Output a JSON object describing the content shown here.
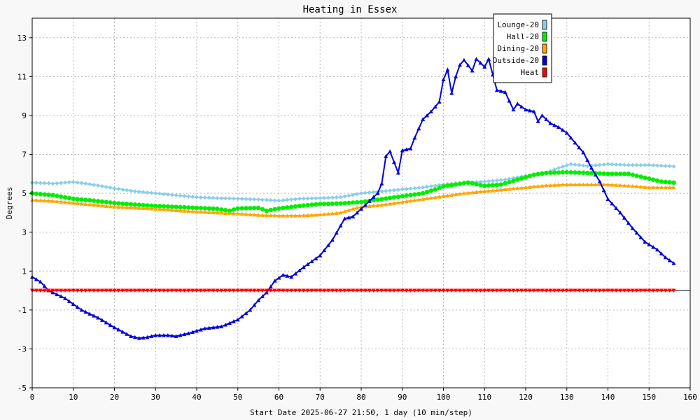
{
  "chart_data": {
    "type": "line",
    "title": "Heating in Essex",
    "xlabel": "Start Date 2025-06-27 21:50, 1 day (10 min/step)",
    "ylabel": "Degrees",
    "xlim": [
      0,
      160
    ],
    "ylim": [
      -5,
      14
    ],
    "x_ticks": [
      0,
      10,
      20,
      30,
      40,
      50,
      60,
      70,
      80,
      90,
      100,
      110,
      120,
      130,
      140,
      150,
      160
    ],
    "y_ticks": [
      -5,
      -3,
      -1,
      1,
      3,
      5,
      7,
      9,
      11,
      13
    ],
    "grid": true,
    "legend_position": "top-right",
    "series": [
      {
        "name": "Lounge-20",
        "color": "#87ceeb",
        "marker": "diamond",
        "points": [
          [
            0,
            5.55
          ],
          [
            5,
            5.5
          ],
          [
            10,
            5.58
          ],
          [
            13,
            5.5
          ],
          [
            16,
            5.4
          ],
          [
            20,
            5.25
          ],
          [
            25,
            5.1
          ],
          [
            30,
            5.0
          ],
          [
            35,
            4.9
          ],
          [
            40,
            4.8
          ],
          [
            45,
            4.75
          ],
          [
            50,
            4.72
          ],
          [
            55,
            4.68
          ],
          [
            60,
            4.62
          ],
          [
            65,
            4.72
          ],
          [
            70,
            4.75
          ],
          [
            75,
            4.8
          ],
          [
            80,
            5.0
          ],
          [
            85,
            5.1
          ],
          [
            90,
            5.2
          ],
          [
            95,
            5.3
          ],
          [
            100,
            5.45
          ],
          [
            105,
            5.55
          ],
          [
            110,
            5.6
          ],
          [
            115,
            5.7
          ],
          [
            120,
            5.9
          ],
          [
            125,
            6.05
          ],
          [
            128,
            6.3
          ],
          [
            131,
            6.5
          ],
          [
            135,
            6.4
          ],
          [
            140,
            6.5
          ],
          [
            145,
            6.45
          ],
          [
            150,
            6.45
          ],
          [
            156,
            6.38
          ]
        ]
      },
      {
        "name": "Hall-20",
        "color": "#00ee00",
        "marker": "circle",
        "points": [
          [
            0,
            5.0
          ],
          [
            5,
            4.9
          ],
          [
            10,
            4.72
          ],
          [
            15,
            4.62
          ],
          [
            20,
            4.5
          ],
          [
            25,
            4.42
          ],
          [
            30,
            4.35
          ],
          [
            35,
            4.3
          ],
          [
            40,
            4.25
          ],
          [
            45,
            4.2
          ],
          [
            48,
            4.1
          ],
          [
            50,
            4.22
          ],
          [
            55,
            4.25
          ],
          [
            57,
            4.1
          ],
          [
            60,
            4.22
          ],
          [
            65,
            4.35
          ],
          [
            70,
            4.45
          ],
          [
            75,
            4.48
          ],
          [
            80,
            4.55
          ],
          [
            85,
            4.7
          ],
          [
            90,
            4.85
          ],
          [
            95,
            5.0
          ],
          [
            98,
            5.2
          ],
          [
            100,
            5.35
          ],
          [
            103,
            5.45
          ],
          [
            106,
            5.55
          ],
          [
            110,
            5.38
          ],
          [
            114,
            5.45
          ],
          [
            118,
            5.7
          ],
          [
            122,
            5.95
          ],
          [
            125,
            6.05
          ],
          [
            130,
            6.08
          ],
          [
            135,
            6.05
          ],
          [
            140,
            6.0
          ],
          [
            145,
            6.0
          ],
          [
            150,
            5.75
          ],
          [
            153,
            5.6
          ],
          [
            156,
            5.55
          ]
        ]
      },
      {
        "name": "Dining-20",
        "color": "#ffa500",
        "marker": "triangle",
        "points": [
          [
            0,
            4.65
          ],
          [
            5,
            4.6
          ],
          [
            10,
            4.5
          ],
          [
            15,
            4.4
          ],
          [
            20,
            4.3
          ],
          [
            25,
            4.25
          ],
          [
            30,
            4.2
          ],
          [
            35,
            4.12
          ],
          [
            40,
            4.05
          ],
          [
            45,
            4.0
          ],
          [
            50,
            3.95
          ],
          [
            55,
            3.88
          ],
          [
            60,
            3.85
          ],
          [
            65,
            3.85
          ],
          [
            70,
            3.9
          ],
          [
            75,
            4.0
          ],
          [
            78,
            4.2
          ],
          [
            80,
            4.3
          ],
          [
            85,
            4.4
          ],
          [
            90,
            4.55
          ],
          [
            95,
            4.7
          ],
          [
            100,
            4.85
          ],
          [
            105,
            5.0
          ],
          [
            110,
            5.1
          ],
          [
            115,
            5.2
          ],
          [
            120,
            5.3
          ],
          [
            125,
            5.4
          ],
          [
            130,
            5.45
          ],
          [
            135,
            5.45
          ],
          [
            140,
            5.45
          ],
          [
            145,
            5.38
          ],
          [
            150,
            5.3
          ],
          [
            156,
            5.3
          ]
        ]
      },
      {
        "name": "Outside-20",
        "color": "#0000dd",
        "marker": "triangle",
        "points": [
          [
            0,
            0.7
          ],
          [
            2,
            0.45
          ],
          [
            4,
            0.0
          ],
          [
            8,
            -0.4
          ],
          [
            12,
            -1.0
          ],
          [
            16,
            -1.4
          ],
          [
            20,
            -1.9
          ],
          [
            24,
            -2.35
          ],
          [
            26,
            -2.45
          ],
          [
            28,
            -2.4
          ],
          [
            30,
            -2.3
          ],
          [
            33,
            -2.3
          ],
          [
            35,
            -2.35
          ],
          [
            38,
            -2.2
          ],
          [
            42,
            -1.95
          ],
          [
            46,
            -1.85
          ],
          [
            50,
            -1.5
          ],
          [
            53,
            -1.0
          ],
          [
            55,
            -0.5
          ],
          [
            57,
            -0.1
          ],
          [
            59,
            0.5
          ],
          [
            61,
            0.8
          ],
          [
            63,
            0.7
          ],
          [
            66,
            1.2
          ],
          [
            70,
            1.8
          ],
          [
            73,
            2.6
          ],
          [
            76,
            3.7
          ],
          [
            78,
            3.8
          ],
          [
            80,
            4.2
          ],
          [
            82,
            4.6
          ],
          [
            84,
            5.0
          ],
          [
            85,
            5.5
          ],
          [
            86,
            6.9
          ],
          [
            87,
            7.15
          ],
          [
            88,
            6.6
          ],
          [
            89,
            6.05
          ],
          [
            90,
            7.2
          ],
          [
            92,
            7.3
          ],
          [
            93,
            7.85
          ],
          [
            95,
            8.8
          ],
          [
            97,
            9.2
          ],
          [
            99,
            9.7
          ],
          [
            100,
            10.85
          ],
          [
            101,
            11.35
          ],
          [
            102,
            10.15
          ],
          [
            103,
            11.0
          ],
          [
            104,
            11.6
          ],
          [
            105,
            11.85
          ],
          [
            107,
            11.3
          ],
          [
            108,
            11.9
          ],
          [
            110,
            11.5
          ],
          [
            111,
            11.9
          ],
          [
            113,
            10.3
          ],
          [
            115,
            10.2
          ],
          [
            117,
            9.3
          ],
          [
            118,
            9.6
          ],
          [
            120,
            9.3
          ],
          [
            122,
            9.2
          ],
          [
            123,
            8.7
          ],
          [
            124,
            9.0
          ],
          [
            126,
            8.6
          ],
          [
            128,
            8.4
          ],
          [
            130,
            8.1
          ],
          [
            132,
            7.6
          ],
          [
            134,
            7.1
          ],
          [
            136,
            6.3
          ],
          [
            138,
            5.6
          ],
          [
            140,
            4.7
          ],
          [
            143,
            4.0
          ],
          [
            146,
            3.2
          ],
          [
            149,
            2.5
          ],
          [
            152,
            2.1
          ],
          [
            154,
            1.7
          ],
          [
            156,
            1.4
          ]
        ]
      },
      {
        "name": "Heat",
        "color": "#ff0000",
        "marker": "triangle-down",
        "points": [
          [
            0,
            0
          ],
          [
            156,
            0
          ]
        ]
      }
    ]
  }
}
